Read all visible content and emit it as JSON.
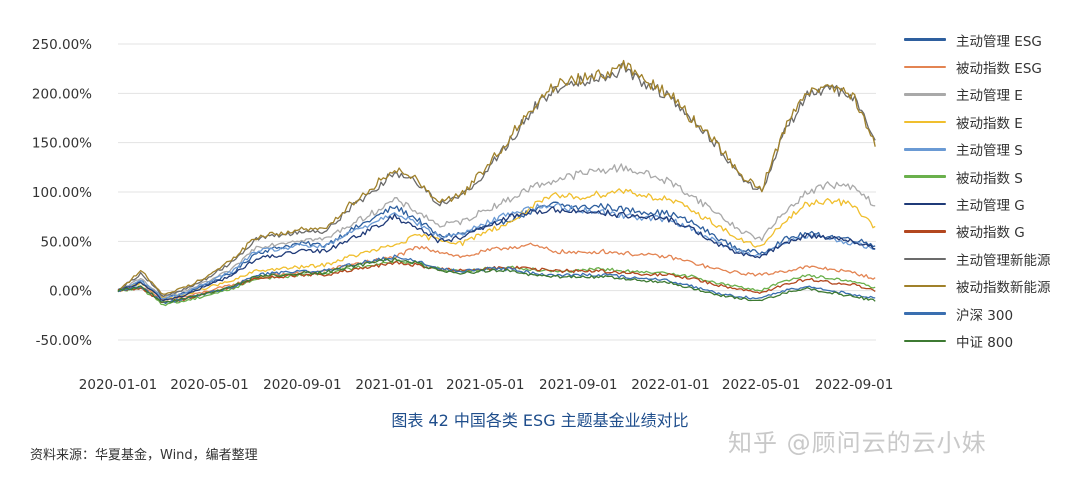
{
  "chart_data": {
    "type": "line",
    "title": "图表 42 中国各类 ESG 主题基金业绩对比",
    "source": "资料来源：华夏基金，Wind，编者整理",
    "y_ticks": [
      "250.00%",
      "200.00%",
      "150.00%",
      "100.00%",
      "50.00%",
      "0.00%",
      "-50.00%"
    ],
    "y_tick_values": [
      250,
      200,
      150,
      100,
      50,
      0,
      -50
    ],
    "ylim": [
      -50,
      250
    ],
    "x_ticks": [
      "2020-01-01",
      "2020-05-01",
      "2020-09-01",
      "2021-01-01",
      "2021-05-01",
      "2021-09-01",
      "2022-01-01",
      "2022-05-01",
      "2022-09-01"
    ],
    "x_range": [
      "2020-01-01",
      "2022-09-30"
    ],
    "grid": "horizontal",
    "legend_position": "right",
    "x_dates": [
      "2020-01-01",
      "2020-02-01",
      "2020-03-01",
      "2020-04-01",
      "2020-05-01",
      "2020-06-01",
      "2020-07-01",
      "2020-08-01",
      "2020-09-01",
      "2020-10-01",
      "2020-11-01",
      "2020-12-01",
      "2021-01-01",
      "2021-02-01",
      "2021-03-01",
      "2021-04-01",
      "2021-05-01",
      "2021-06-01",
      "2021-07-01",
      "2021-08-01",
      "2021-09-01",
      "2021-10-01",
      "2021-11-01",
      "2021-12-01",
      "2022-01-01",
      "2022-02-01",
      "2022-03-01",
      "2022-04-01",
      "2022-05-01",
      "2022-06-01",
      "2022-07-01",
      "2022-08-01",
      "2022-09-01",
      "2022-09-30"
    ],
    "series": [
      {
        "name": "主动管理 ESG",
        "color": "#2e5f9e",
        "values": [
          0,
          10,
          -8,
          -2,
          8,
          18,
          38,
          44,
          48,
          46,
          60,
          72,
          85,
          72,
          55,
          58,
          64,
          72,
          80,
          88,
          84,
          86,
          82,
          80,
          78,
          68,
          55,
          42,
          38,
          52,
          58,
          55,
          52,
          46
        ]
      },
      {
        "name": "被动指数 ESG",
        "color": "#e38452",
        "values": [
          0,
          4,
          -10,
          -6,
          0,
          6,
          14,
          16,
          18,
          20,
          26,
          30,
          34,
          44,
          40,
          34,
          40,
          44,
          46,
          40,
          38,
          40,
          38,
          36,
          34,
          28,
          22,
          18,
          16,
          20,
          24,
          22,
          18,
          12
        ]
      },
      {
        "name": "主动管理 E",
        "color": "#a9a9a9",
        "values": [
          0,
          12,
          -6,
          0,
          10,
          22,
          44,
          48,
          52,
          52,
          66,
          78,
          92,
          80,
          66,
          70,
          82,
          92,
          105,
          112,
          118,
          122,
          125,
          118,
          110,
          95,
          80,
          62,
          52,
          80,
          100,
          108,
          104,
          86
        ]
      },
      {
        "name": "被动指数 E",
        "color": "#f0bf2e",
        "values": [
          0,
          8,
          -8,
          -4,
          4,
          10,
          20,
          22,
          24,
          26,
          34,
          40,
          46,
          56,
          52,
          48,
          60,
          68,
          85,
          96,
          95,
          98,
          102,
          96,
          92,
          80,
          68,
          52,
          44,
          70,
          88,
          92,
          86,
          62
        ]
      },
      {
        "name": "主动管理 S",
        "color": "#6a9ad4",
        "values": [
          0,
          10,
          -8,
          -2,
          10,
          20,
          40,
          42,
          46,
          44,
          58,
          68,
          80,
          68,
          54,
          58,
          68,
          78,
          84,
          86,
          82,
          80,
          76,
          74,
          72,
          62,
          50,
          40,
          36,
          48,
          56,
          52,
          48,
          42
        ]
      },
      {
        "name": "被动指数 S",
        "color": "#6ab04c",
        "values": [
          0,
          2,
          -14,
          -10,
          -4,
          2,
          12,
          14,
          16,
          18,
          22,
          26,
          30,
          28,
          22,
          20,
          22,
          24,
          22,
          20,
          20,
          22,
          20,
          18,
          18,
          14,
          8,
          4,
          0,
          10,
          16,
          12,
          10,
          2
        ]
      },
      {
        "name": "主动管理 G",
        "color": "#1f3a78",
        "values": [
          0,
          8,
          -10,
          -4,
          6,
          16,
          32,
          36,
          40,
          40,
          52,
          62,
          75,
          64,
          50,
          54,
          64,
          74,
          80,
          82,
          80,
          80,
          76,
          74,
          72,
          62,
          48,
          38,
          34,
          48,
          56,
          54,
          50,
          42
        ]
      },
      {
        "name": "被动指数 G",
        "color": "#b3471f",
        "values": [
          0,
          2,
          -12,
          -8,
          -2,
          4,
          12,
          14,
          16,
          16,
          20,
          24,
          28,
          26,
          22,
          20,
          22,
          24,
          22,
          20,
          20,
          20,
          18,
          16,
          16,
          12,
          6,
          2,
          -2,
          6,
          12,
          8,
          6,
          0
        ]
      },
      {
        "name": "主动管理新能源",
        "color": "#6b6b6b",
        "values": [
          0,
          18,
          -6,
          2,
          14,
          30,
          52,
          56,
          60,
          60,
          82,
          100,
          120,
          110,
          88,
          96,
          120,
          150,
          182,
          205,
          212,
          218,
          225,
          210,
          195,
          170,
          150,
          118,
          100,
          160,
          200,
          205,
          195,
          150
        ]
      },
      {
        "name": "被动指数新能源",
        "color": "#a0812a",
        "values": [
          0,
          20,
          -4,
          4,
          16,
          32,
          54,
          58,
          62,
          62,
          86,
          104,
          124,
          112,
          90,
          98,
          124,
          154,
          186,
          208,
          215,
          220,
          228,
          212,
          198,
          172,
          152,
          120,
          102,
          164,
          204,
          208,
          198,
          148
        ]
      },
      {
        "name": "沪深 300",
        "color": "#3a6fb0",
        "values": [
          0,
          4,
          -12,
          -8,
          -2,
          4,
          16,
          18,
          20,
          20,
          26,
          30,
          34,
          30,
          22,
          20,
          22,
          22,
          18,
          16,
          16,
          16,
          14,
          12,
          10,
          4,
          -2,
          -6,
          -8,
          0,
          4,
          0,
          -4,
          -8
        ]
      },
      {
        "name": "中证 800",
        "color": "#3d7a32",
        "values": [
          0,
          4,
          -12,
          -8,
          -2,
          4,
          14,
          16,
          18,
          18,
          24,
          28,
          32,
          28,
          20,
          18,
          20,
          20,
          16,
          14,
          14,
          14,
          12,
          10,
          8,
          2,
          -4,
          -8,
          -10,
          -2,
          2,
          -2,
          -6,
          -10
        ]
      }
    ]
  },
  "watermark": "知乎 @顾问云的云小妹"
}
